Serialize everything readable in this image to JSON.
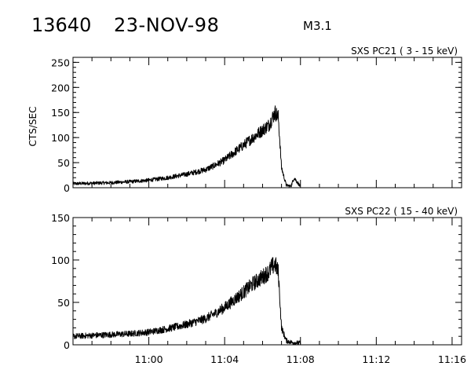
{
  "header": {
    "event_id": "13640",
    "date": "23-NOV-98",
    "flare_class": "M3.1"
  },
  "chart_data": [
    {
      "type": "line",
      "title": "SXS PC21  (  3 - 15 keV)",
      "ylabel": "CTS/SEC",
      "xlabel": "",
      "xlim": [
        "10:56:00",
        "11:16:30"
      ],
      "ylim": [
        0,
        260
      ],
      "y_ticks": [
        0,
        50,
        100,
        150,
        200,
        250
      ],
      "x_ticks": [],
      "x_tick_labels": [],
      "grid": false,
      "series": [
        {
          "x": [
            "10:56:00",
            "10:57:00",
            "10:58:00",
            "10:59:00",
            "11:00:00",
            "11:01:00",
            "11:02:00",
            "11:03:00",
            "11:03:30",
            "11:04:00",
            "11:04:30",
            "11:05:00",
            "11:05:30",
            "11:06:00",
            "11:06:20",
            "11:06:30",
            "11:06:40",
            "11:06:50",
            "11:07:00",
            "11:07:15",
            "11:07:30",
            "11:07:40",
            "11:08:00"
          ],
          "y": [
            8,
            9,
            10,
            12,
            15,
            20,
            27,
            36,
            45,
            55,
            70,
            85,
            100,
            115,
            125,
            138,
            150,
            140,
            40,
            5,
            3,
            20,
            2
          ]
        }
      ]
    },
    {
      "type": "line",
      "title": "SXS PC22  ( 15 - 40 keV)",
      "ylabel": "",
      "xlabel": "",
      "xlim": [
        "10:56:00",
        "11:16:30"
      ],
      "ylim": [
        0,
        150
      ],
      "y_ticks": [
        0,
        50,
        100,
        150
      ],
      "x_ticks": [
        "11:00",
        "11:04",
        "11:08",
        "11:12",
        "11:16"
      ],
      "x_tick_labels": [
        "11:00",
        "11:04",
        "11:08",
        "11:12",
        "11:16"
      ],
      "grid": false,
      "series": [
        {
          "x": [
            "10:56:00",
            "10:57:00",
            "10:58:00",
            "10:59:00",
            "11:00:00",
            "11:01:00",
            "11:02:00",
            "11:03:00",
            "11:03:30",
            "11:04:00",
            "11:04:30",
            "11:05:00",
            "11:05:30",
            "11:06:00",
            "11:06:20",
            "11:06:30",
            "11:06:40",
            "11:06:50",
            "11:07:00",
            "11:07:15",
            "11:07:30",
            "11:08:00"
          ],
          "y": [
            10,
            11,
            12,
            13,
            15,
            19,
            24,
            31,
            37,
            44,
            53,
            62,
            72,
            80,
            86,
            92,
            95,
            85,
            20,
            5,
            3,
            2
          ]
        }
      ]
    }
  ]
}
